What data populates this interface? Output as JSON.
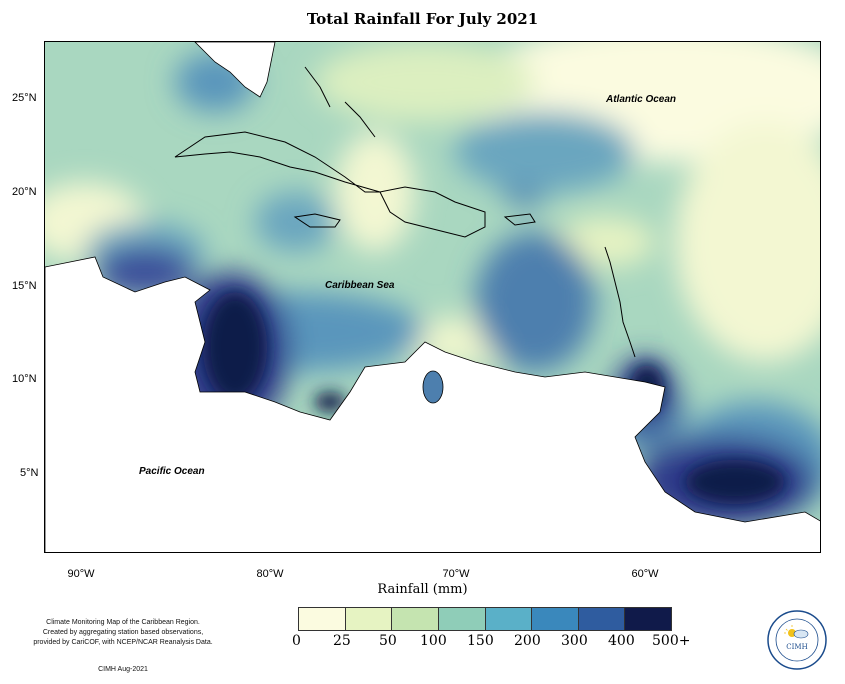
{
  "map": {
    "title": "Total Rainfall For July 2021",
    "lat_labels": [
      "25°N",
      "20°N",
      "15°N",
      "10°N",
      "5°N"
    ],
    "lon_labels": [
      "90°W",
      "80°W",
      "70°W",
      "60°W"
    ],
    "ocean_labels": {
      "atlantic": "Atlantic Ocean",
      "caribbean": "Caribbean Sea",
      "pacific": "Pacific Ocean"
    }
  },
  "legend": {
    "title": "Rainfall (mm)",
    "ticks": [
      "0",
      "25",
      "50",
      "100",
      "150",
      "200",
      "300",
      "400",
      "500+"
    ],
    "colors": [
      "#fbfbe0",
      "#e6f3c2",
      "#c5e4b0",
      "#8fcdb8",
      "#5ab0c8",
      "#3a88bc",
      "#2f5c9f",
      "#2f3b8a",
      "#101a4a"
    ]
  },
  "credits": {
    "line1": "Climate Monitoring Map of the Caribbean Region.",
    "line2": "Created by aggregating station based observations,",
    "line3": "provided by CariCOF, with NCEP/NCAR Reanalysis Data.",
    "date": "CIMH Aug-2021"
  },
  "logo": {
    "text": "CIMH"
  }
}
